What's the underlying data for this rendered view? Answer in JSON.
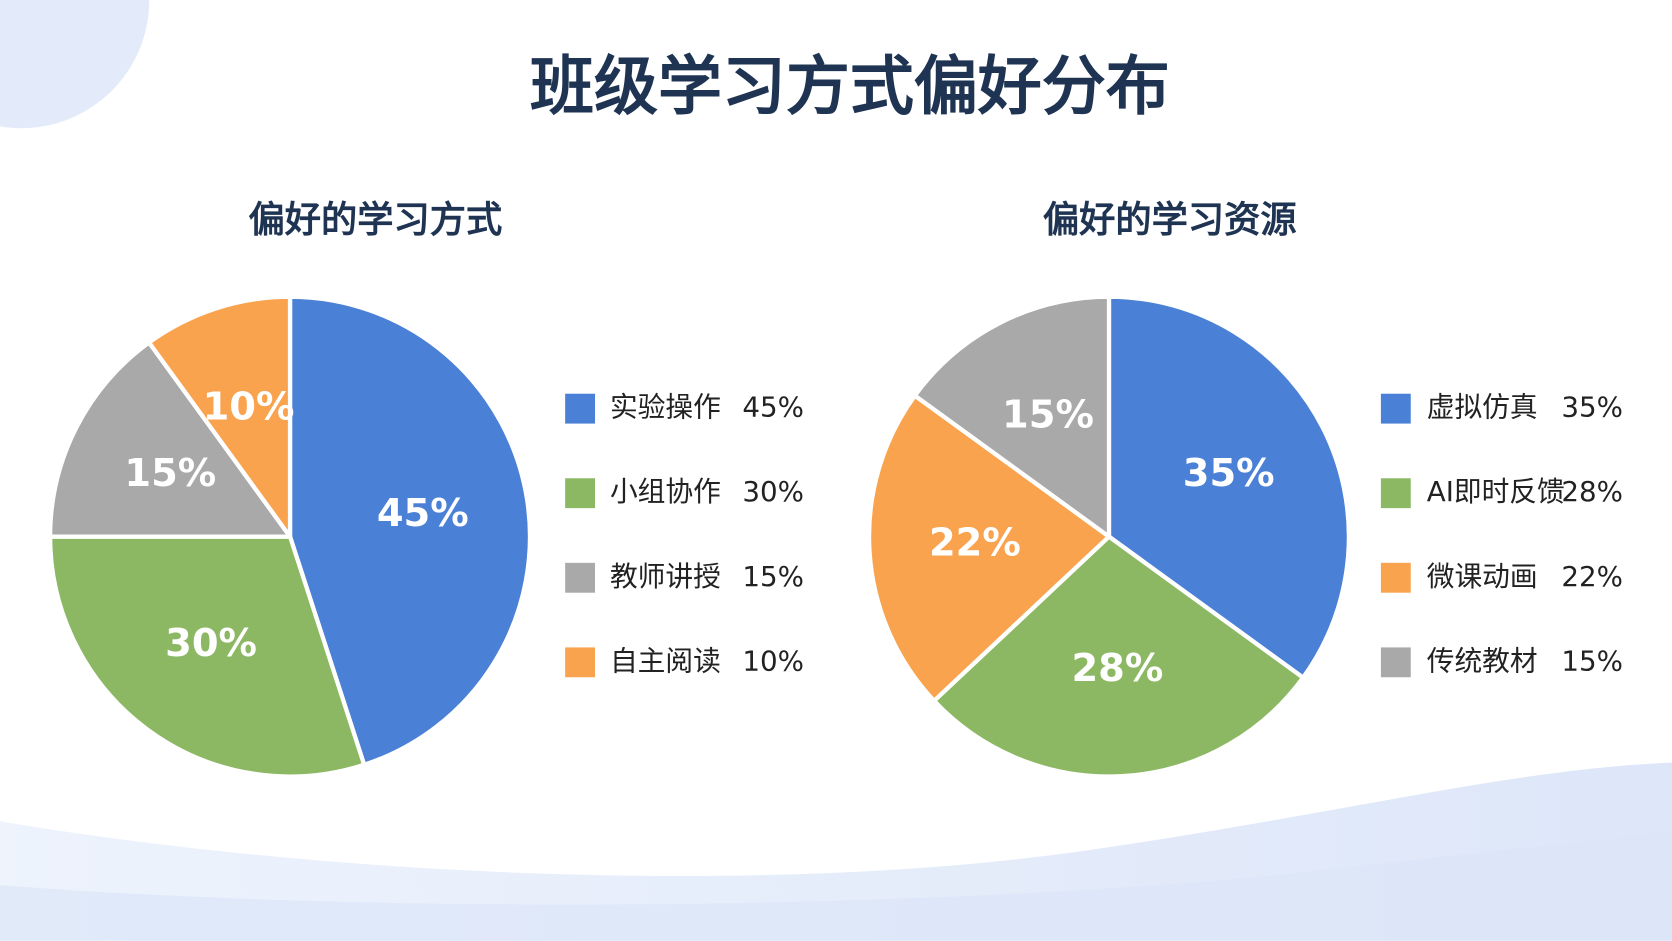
{
  "title": "班级学习方式偏好分布",
  "chart_data": [
    {
      "type": "pie",
      "title": "偏好的学习方式",
      "categories": [
        "实验操作",
        "小组协作",
        "教师讲授",
        "自主阅读"
      ],
      "values": [
        45,
        30,
        15,
        10
      ],
      "value_labels": [
        "45%",
        "30%",
        "15%",
        "10%"
      ],
      "colors": [
        "#4a80d6",
        "#8cb864",
        "#a9a9a9",
        "#f9a34f"
      ]
    },
    {
      "type": "pie",
      "title": "偏好的学习资源",
      "categories": [
        "虚拟仿真",
        "AI即时反馈",
        "微课动画",
        "传统教材"
      ],
      "values": [
        35,
        28,
        22,
        15
      ],
      "value_labels": [
        "35%",
        "28%",
        "22%",
        "15%"
      ],
      "colors": [
        "#4a80d6",
        "#8cb864",
        "#f9a34f",
        "#a9a9a9"
      ]
    }
  ]
}
